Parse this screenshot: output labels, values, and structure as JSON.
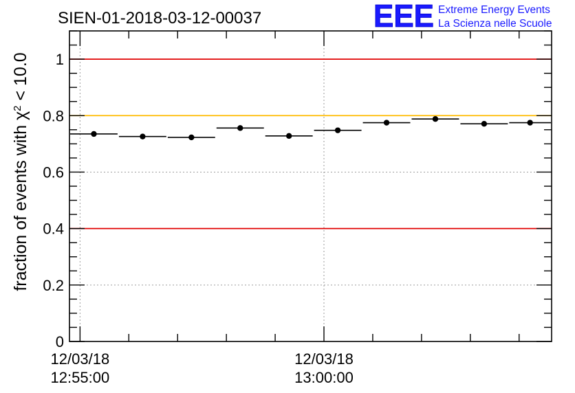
{
  "title": "SIEN-01-2018-03-12-00037",
  "logo": {
    "mark": "EEE",
    "line1": "Extreme Energy Events",
    "line2": "La Scienza nelle Scuole"
  },
  "colors": {
    "red_line": "#e00000",
    "yellow_line": "#ffbb00",
    "marker": "#000000",
    "logo": "#1a1aff"
  },
  "chart_data": {
    "type": "scatter",
    "title": "SIEN-01-2018-03-12-00037",
    "ylabel_prefix": "fraction of events with ",
    "ylabel_chi": "χ",
    "ylabel_sup": "2",
    "ylabel_suffix": " < 10.0",
    "ylim": [
      0,
      1.1
    ],
    "yticks": [
      0,
      0.2,
      0.4,
      0.6,
      0.8,
      1
    ],
    "ytick_labels": [
      "0",
      "0.2",
      "0.4",
      "0.6",
      "0.8",
      "1"
    ],
    "xlim": [
      "12:54:47",
      "13:04:40"
    ],
    "xtick_labels": [
      {
        "x": "12:55:00",
        "line1": "12/03/18",
        "line2": "12:55:00"
      },
      {
        "x": "13:00:00",
        "line1": "12/03/18",
        "line2": "13:00:00"
      }
    ],
    "grid": true,
    "reference_lines": [
      {
        "y": 1.0,
        "color": "#e00000"
      },
      {
        "y": 0.8,
        "color": "#ffbb00"
      },
      {
        "y": 0.4,
        "color": "#e00000"
      }
    ],
    "series": [
      {
        "points": [
          {
            "x_start": "12:54:47",
            "x_end": "12:55:47",
            "y": 0.735
          },
          {
            "x_start": "12:55:47",
            "x_end": "12:56:47",
            "y": 0.726
          },
          {
            "x_start": "12:56:47",
            "x_end": "12:57:47",
            "y": 0.723
          },
          {
            "x_start": "12:57:47",
            "x_end": "12:58:47",
            "y": 0.756
          },
          {
            "x_start": "12:58:47",
            "x_end": "12:59:47",
            "y": 0.728
          },
          {
            "x_start": "12:59:47",
            "x_end": "13:00:47",
            "y": 0.748
          },
          {
            "x_start": "13:00:47",
            "x_end": "13:01:47",
            "y": 0.775
          },
          {
            "x_start": "13:01:47",
            "x_end": "13:02:47",
            "y": 0.788
          },
          {
            "x_start": "13:02:47",
            "x_end": "13:03:47",
            "y": 0.771
          },
          {
            "x_start": "13:03:47",
            "x_end": "13:04:40",
            "y": 0.775
          }
        ]
      }
    ]
  }
}
